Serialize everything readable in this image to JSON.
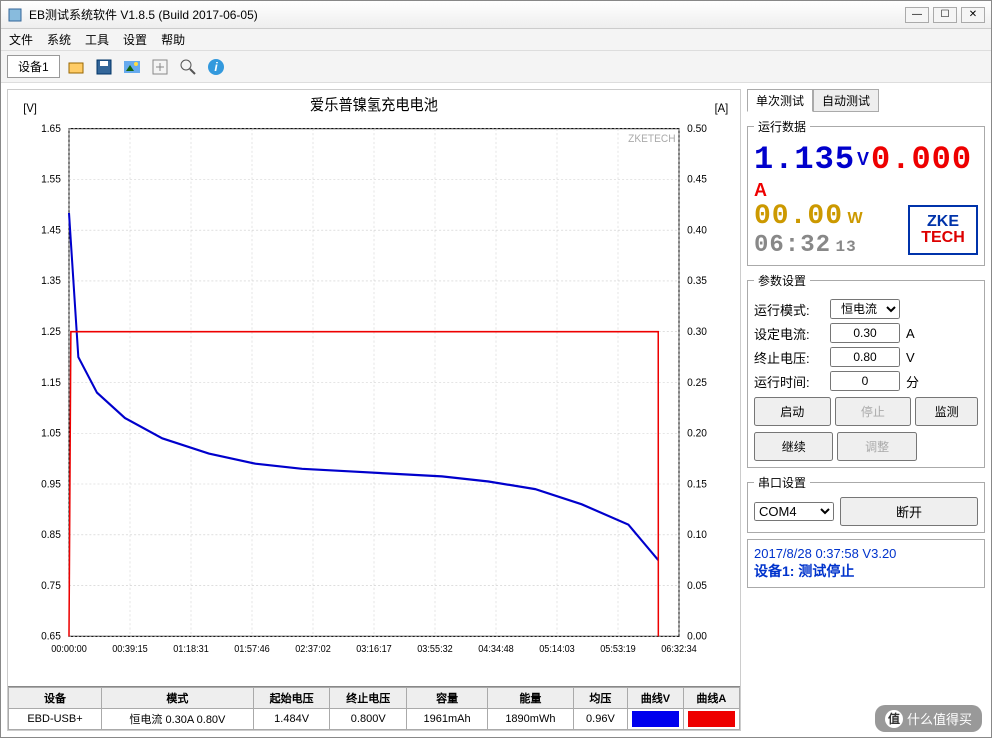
{
  "window": {
    "title": "EB测试系统软件 V1.8.5 (Build 2017-06-05)"
  },
  "menu": {
    "file": "文件",
    "system": "系统",
    "tools": "工具",
    "settings": "设置",
    "help": "帮助"
  },
  "device_tab": "设备1",
  "chart": {
    "title": "爱乐普镍氢充电电池",
    "left_unit": "[V]",
    "right_unit": "[A]",
    "brand": "ZKETECH",
    "x_ticks": [
      "00:00:00",
      "00:39:15",
      "01:18:31",
      "01:57:46",
      "02:37:02",
      "03:16:17",
      "03:55:32",
      "04:34:48",
      "05:14:03",
      "05:53:19",
      "06:32:34"
    ],
    "left_min": 0.65,
    "left_max": 1.65,
    "left_step": 0.1,
    "right_min": 0.0,
    "right_max": 0.5,
    "right_step": 0.05,
    "grid_color": "#cccccc",
    "bg": "#ffffff",
    "voltage_color": "#0000cc",
    "current_color": "#ee0000",
    "voltage_series": [
      [
        0,
        1.484
      ],
      [
        0.1,
        1.2
      ],
      [
        0.3,
        1.13
      ],
      [
        0.6,
        1.08
      ],
      [
        1,
        1.04
      ],
      [
        1.5,
        1.01
      ],
      [
        2,
        0.99
      ],
      [
        2.5,
        0.98
      ],
      [
        3,
        0.975
      ],
      [
        3.5,
        0.97
      ],
      [
        4,
        0.965
      ],
      [
        4.5,
        0.955
      ],
      [
        5,
        0.94
      ],
      [
        5.5,
        0.91
      ],
      [
        6,
        0.87
      ],
      [
        6.32,
        0.8
      ]
    ],
    "current_series": [
      [
        0,
        0.0
      ],
      [
        0.02,
        0.3
      ],
      [
        6.32,
        0.3
      ],
      [
        6.321,
        0.0
      ]
    ]
  },
  "table": {
    "headers": [
      "设备",
      "模式",
      "起始电压",
      "终止电压",
      "容量",
      "能量",
      "均压",
      "曲线V",
      "曲线A"
    ],
    "row": {
      "device": "EBD-USB+",
      "mode": "恒电流  0.30A  0.80V",
      "v_start": "1.484V",
      "v_end": "0.800V",
      "cap": "1961mAh",
      "energy": "1890mWh",
      "avg": "0.96V"
    },
    "swatch_v": "#0000ee",
    "swatch_a": "#ee0000"
  },
  "tabs": {
    "single": "单次测试",
    "auto": "自动测试"
  },
  "run_data": {
    "legend": "运行数据",
    "voltage": "1.135",
    "v_unit": "V",
    "current": "0.000",
    "a_unit": "A",
    "power": "00.00",
    "w_unit": "W",
    "time_main": "06:32",
    "time_sec": "13",
    "logo1": "ZKE",
    "logo2": "TECH"
  },
  "params": {
    "legend": "参数设置",
    "mode_label": "运行模式:",
    "mode_value": "恒电流",
    "current_label": "设定电流:",
    "current_value": "0.30",
    "current_unit": "A",
    "cutoff_label": "终止电压:",
    "cutoff_value": "0.80",
    "cutoff_unit": "V",
    "time_label": "运行时间:",
    "time_value": "0",
    "time_unit": "分",
    "start": "启动",
    "stop": "停止",
    "monitor": "监测",
    "continue": "继续",
    "adjust": "调整"
  },
  "serial": {
    "legend": "串口设置",
    "port": "COM4",
    "disconnect": "断开"
  },
  "status": {
    "timestamp": "2017/8/28 0:37:58  V3.20",
    "line": "设备1: 测试停止"
  },
  "watermark": "什么值得买"
}
